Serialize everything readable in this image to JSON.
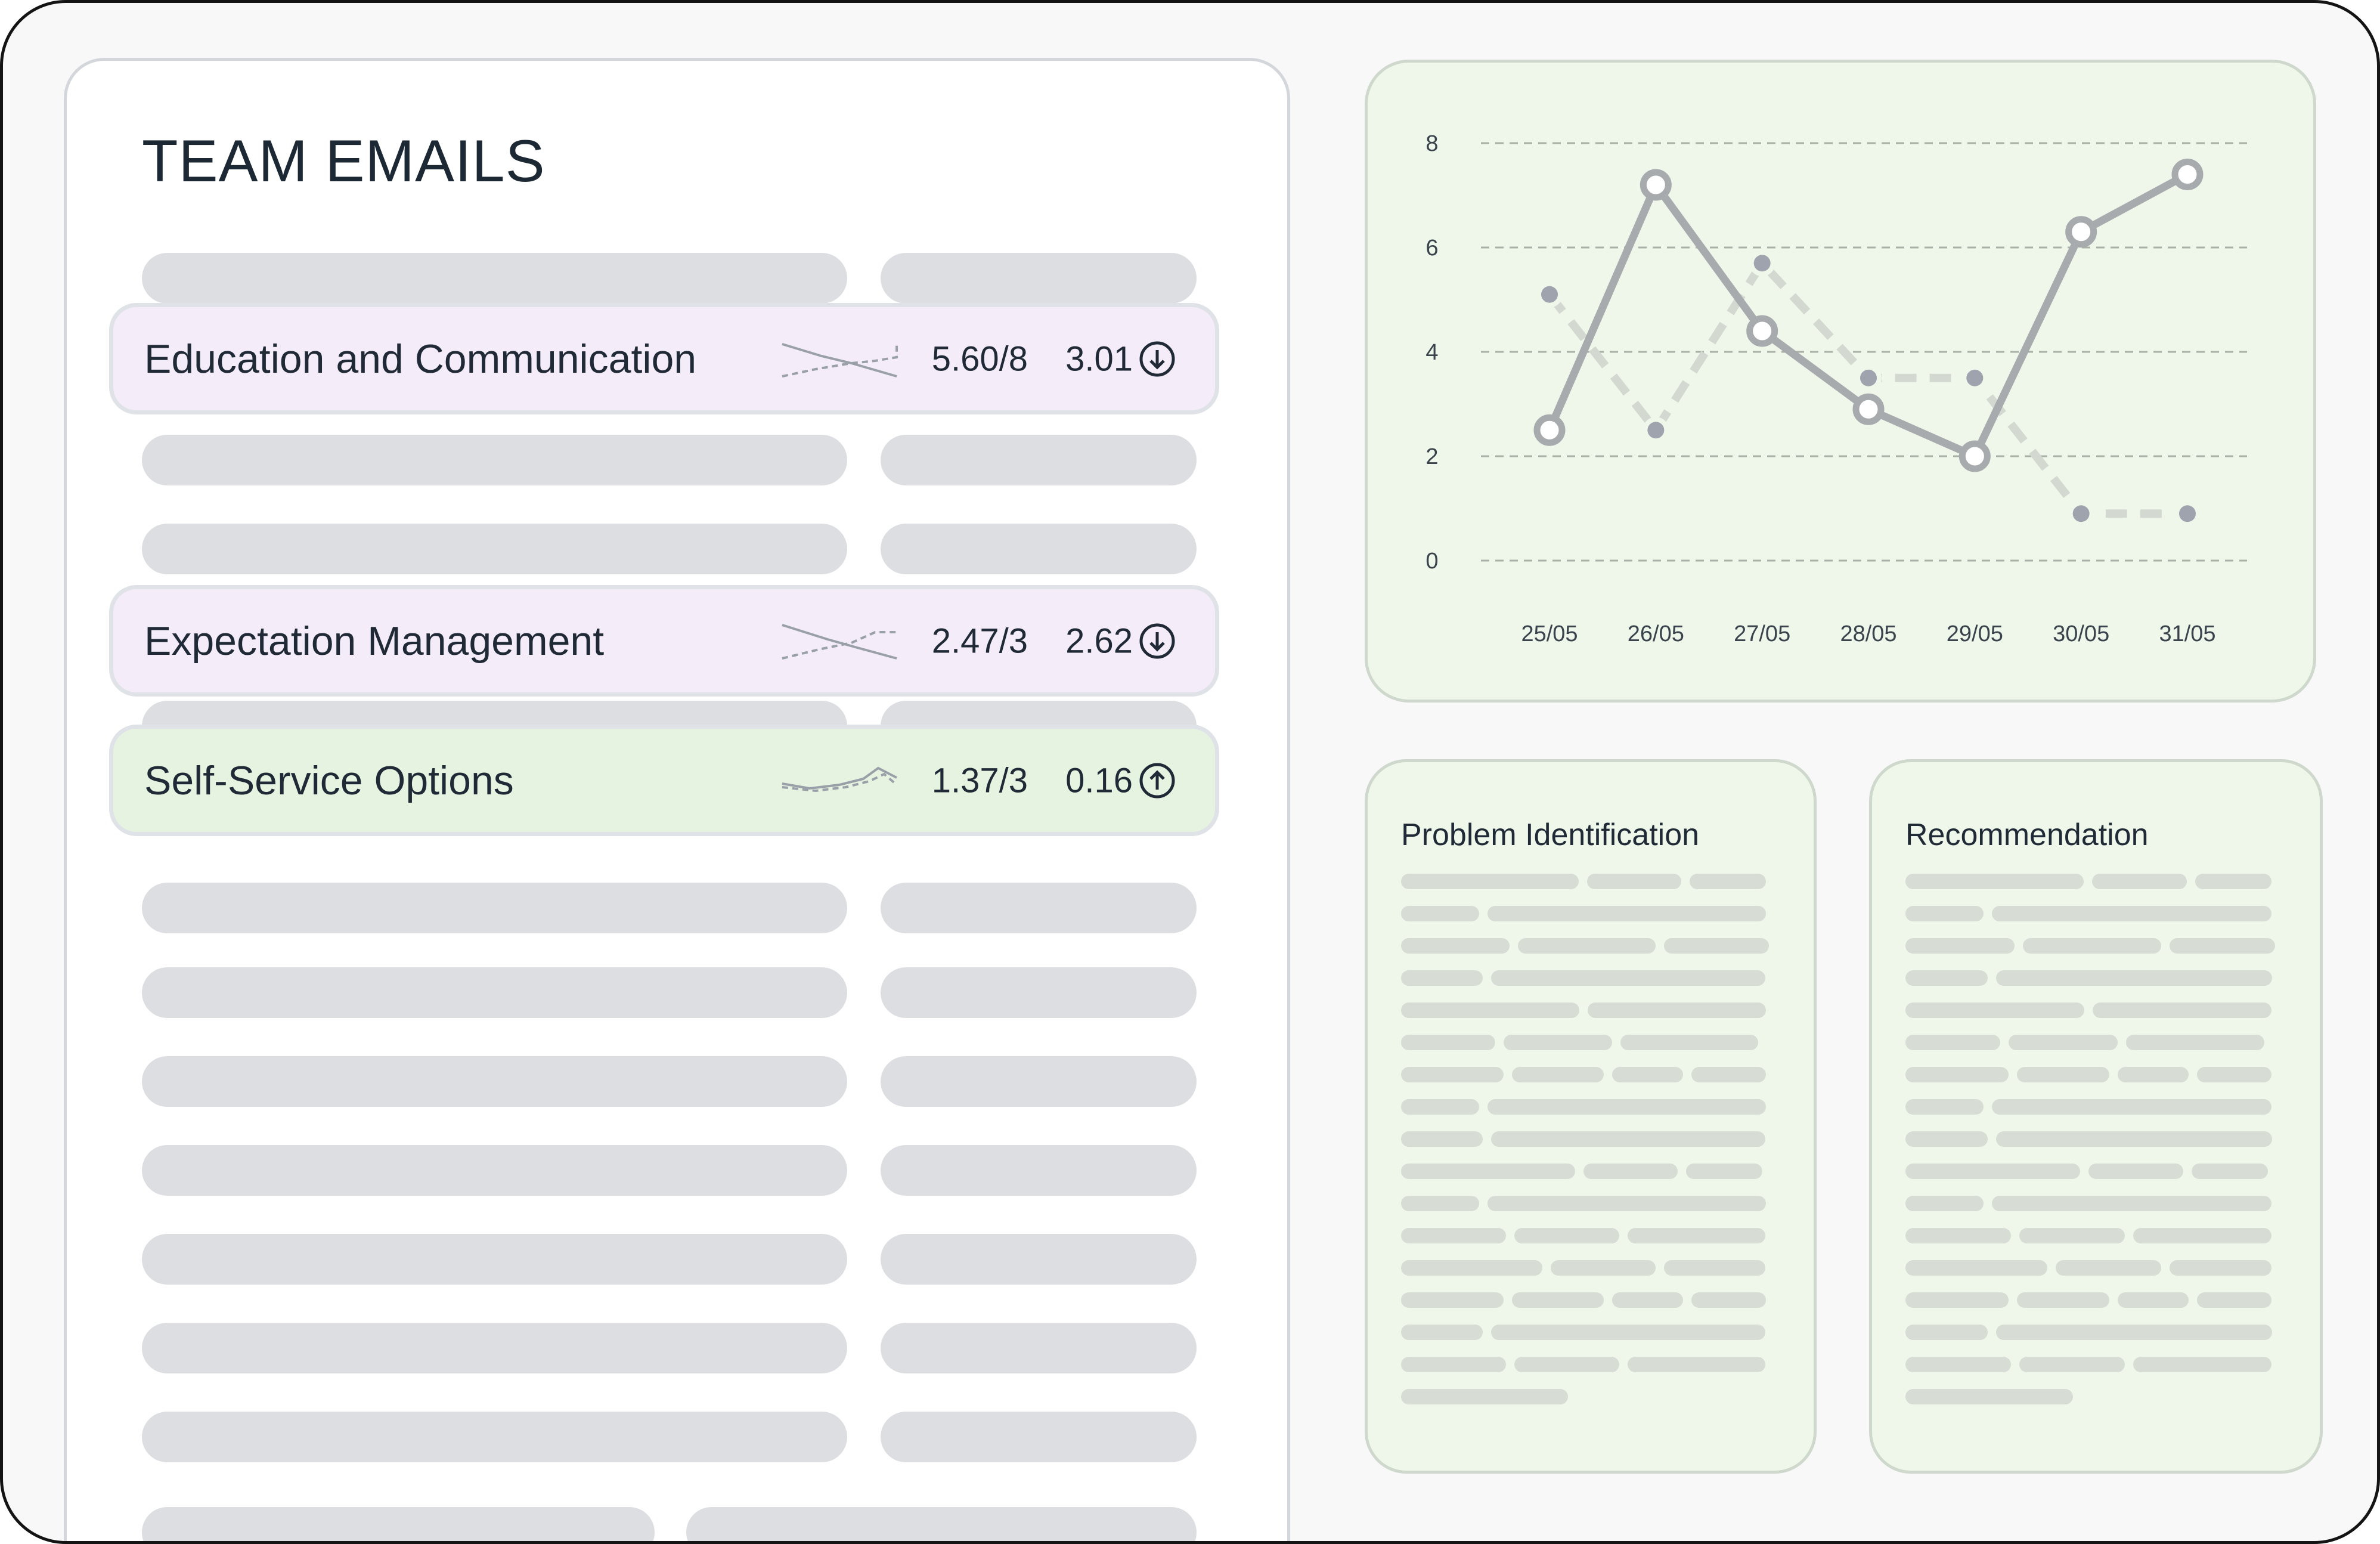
{
  "panel": {
    "title": "TEAM EMAILS"
  },
  "rows": [
    {
      "label": "Education and Communication",
      "score": "5.60/8",
      "delta": "3.01",
      "trend": "down",
      "trend_icon": "arrow-down-circle-icon",
      "background": "#f4ecf8"
    },
    {
      "label": "Expectation Management",
      "score": "2.47/3",
      "delta": "2.62",
      "trend": "down",
      "trend_icon": "arrow-down-circle-icon",
      "background": "#f4ecf8"
    },
    {
      "label": "Self-Service Options",
      "score": "1.37/3",
      "delta": "0.16",
      "trend": "up",
      "trend_icon": "arrow-up-circle-icon",
      "background": "#e7f3e1"
    }
  ],
  "chart_data": {
    "type": "line",
    "categories": [
      "25/05",
      "26/05",
      "27/05",
      "28/05",
      "29/05",
      "30/05",
      "31/05"
    ],
    "ylim": [
      0,
      8
    ],
    "yticks": [
      0,
      2,
      4,
      6,
      8
    ],
    "grid": true,
    "series": [
      {
        "style": "solid",
        "color": "#a8abae",
        "values": [
          2.5,
          7.2,
          4.4,
          2.9,
          2.0,
          6.3,
          7.4
        ]
      },
      {
        "style": "dashed",
        "color": "#d3d8d1",
        "values": [
          5.1,
          2.5,
          5.7,
          3.5,
          3.5,
          0.9,
          0.9
        ]
      }
    ]
  },
  "cards": [
    {
      "title": "Problem Identification"
    },
    {
      "title": "Recommendation"
    }
  ],
  "colors": {
    "accent_purple": "#f4ecf8",
    "accent_green": "#e7f3e1",
    "panel_green": "#eff7ea",
    "placeholder": "#dcdee1"
  }
}
